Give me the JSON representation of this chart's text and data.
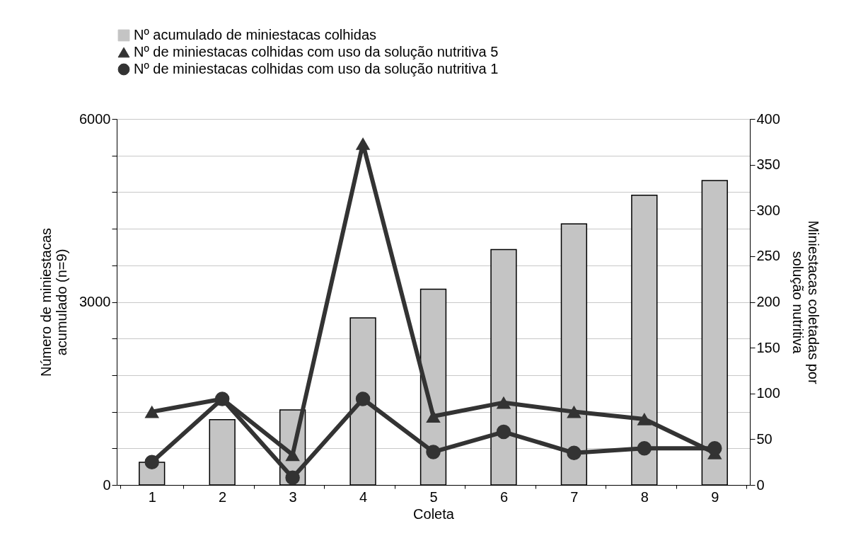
{
  "chart_data": {
    "type": "bar",
    "xlabel": "Coleta",
    "ylabel": "Número de miniestacas\nacumulado (n=9)",
    "y2label": "Miniestacas coletadas por\nsolução nutritiva",
    "categories": [
      "1",
      "2",
      "3",
      "4",
      "5",
      "6",
      "7",
      "8",
      "9"
    ],
    "series": [
      {
        "name": "Nº acumulado de miniestacas colhidas",
        "color": "#c4c4c4",
        "values": [
          370,
          1070,
          1230,
          2740,
          3210,
          3860,
          4280,
          4750,
          4990
        ]
      },
      {
        "name": "Nº de miniestacas colhidas com uso da solução nutritiva 5",
        "type": "line",
        "axis": "y2",
        "marker": "triangle",
        "color": "#333333",
        "values": [
          80,
          94,
          33,
          373,
          75,
          90,
          80,
          72,
          35
        ]
      },
      {
        "name": "Nº de miniestacas colhidas com uso da solução nutritiva 1",
        "type": "line",
        "axis": "y2",
        "marker": "circle",
        "color": "#333333",
        "values": [
          25,
          94,
          8,
          94,
          36,
          58,
          35,
          40,
          40
        ]
      }
    ],
    "ylim": [
      0,
      6000
    ],
    "yticks": [
      0,
      {
        "value": 600,
        "label": null
      },
      {
        "value": 1200,
        "label": null
      },
      {
        "value": 1800,
        "label": null
      },
      {
        "value": 2400,
        "label": null
      },
      3000,
      {
        "value": 3600,
        "label": null
      },
      {
        "value": 4200,
        "label": null
      },
      {
        "value": 4800,
        "label": null
      },
      {
        "value": 5400,
        "label": null
      },
      6000
    ],
    "y2lim": [
      0,
      400
    ],
    "y2ticks": [
      0,
      50,
      100,
      150,
      200,
      250,
      300,
      350,
      400
    ],
    "grid": "y",
    "legend": "top left",
    "line_style": "solid"
  }
}
